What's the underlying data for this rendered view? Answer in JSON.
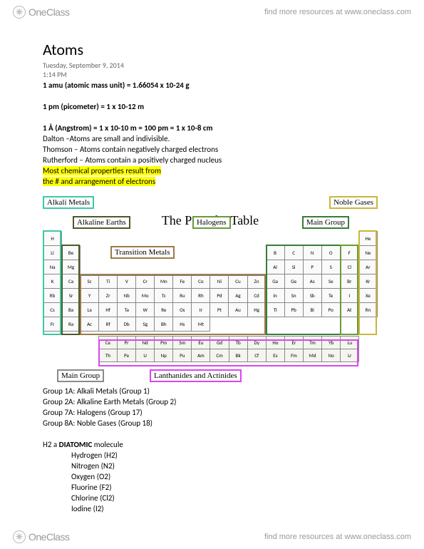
{
  "brand": {
    "logo_text": "OneClass",
    "tagline": "find more resources at www.oneclass.com"
  },
  "doc": {
    "title": "Atoms",
    "date": "Tuesday, September 9, 2014",
    "time": "1:14 PM",
    "line_amu": "1 amu (atomic mass unit) = 1.66054 x 10-24 g",
    "line_pm": "1 pm (picometer) = 1 x 10-12 m",
    "line_ang": "1 Å (Angstrom) = 1 x 10-10 m = 100 pm = 1 x 10-8 cm",
    "dalton": "Dalton –Atoms are small and indivisible.",
    "thomson": "Thomson – Atoms contain negatively charged electrons",
    "rutherford": "Rutherford – Atoms contain a positively charged nucleus",
    "hl1": "Most chemical properties result from",
    "hl2": "the # and arrangement of electrons"
  },
  "pt": {
    "title": "The Periodic Table",
    "labels": {
      "alkali": "Alkali Metals",
      "alkaline": "Alkaline Earths",
      "transition": "Transition Metals",
      "halogens": "Halogens",
      "noble": "Noble Gases",
      "main": "Main Group",
      "lan": "Lanthanides and Actinides"
    },
    "colors": {
      "alkali": "#3cc9a7",
      "alkaline": "#4a5a2a",
      "transition": "#9b7a4a",
      "halogens": "#6a9a3a",
      "noble": "#c9b73c",
      "main_left": "#8a8a8a",
      "main_right": "#3a7a3a",
      "lan": "#d946ef"
    },
    "row1": [
      "H",
      "",
      "",
      "",
      "",
      "",
      "",
      "",
      "",
      "",
      "",
      "",
      "",
      "",
      "",
      "",
      "",
      "He"
    ],
    "row2": [
      "Li",
      "Be",
      "",
      "",
      "",
      "",
      "",
      "",
      "",
      "",
      "",
      "",
      "B",
      "C",
      "N",
      "O",
      "F",
      "Ne"
    ],
    "row3": [
      "Na",
      "Mg",
      "",
      "",
      "",
      "",
      "",
      "",
      "",
      "",
      "",
      "",
      "Al",
      "Si",
      "P",
      "S",
      "Cl",
      "Ar"
    ],
    "row4": [
      "K",
      "Ca",
      "Sc",
      "Ti",
      "V",
      "Cr",
      "Mn",
      "Fe",
      "Co",
      "Ni",
      "Cu",
      "Zn",
      "Ga",
      "Ge",
      "As",
      "Se",
      "Br",
      "Kr"
    ],
    "row5": [
      "Rb",
      "Sr",
      "Y",
      "Zr",
      "Nb",
      "Mo",
      "Tc",
      "Ru",
      "Rh",
      "Pd",
      "Ag",
      "Cd",
      "In",
      "Sn",
      "Sb",
      "Te",
      "I",
      "Xe"
    ],
    "row6": [
      "Cs",
      "Ba",
      "La",
      "Hf",
      "Ta",
      "W",
      "Re",
      "Os",
      "Ir",
      "Pt",
      "Au",
      "Hg",
      "Tl",
      "Pb",
      "Bi",
      "Po",
      "At",
      "Rn"
    ],
    "row7": [
      "Fr",
      "Ra",
      "Ac",
      "Rf",
      "Db",
      "Sg",
      "Bh",
      "Hs",
      "Mt",
      "",
      "",
      "",
      "",
      "",
      "",
      "",
      "",
      ""
    ],
    "lan1": [
      "",
      "",
      "",
      "Ce",
      "Pr",
      "Nd",
      "Pm",
      "Sm",
      "Eu",
      "Gd",
      "Tb",
      "Dy",
      "Ho",
      "Er",
      "Tm",
      "Yb",
      "Lu",
      ""
    ],
    "lan2": [
      "",
      "",
      "",
      "Th",
      "Pa",
      "U",
      "Np",
      "Pu",
      "Am",
      "Cm",
      "Bk",
      "Cf",
      "Es",
      "Fm",
      "Md",
      "No",
      "Lr",
      ""
    ]
  },
  "groups": {
    "g1": "Group 1A: Alkali Metals (Group 1)",
    "g2": "Group 2A: Alkaline Earth Metals (Group 2)",
    "g7": "Group 7A: Halogens (Group 17)",
    "g8": "Group 8A: Noble Gases (Group 18)"
  },
  "diatomic": {
    "heading_pre": "H2 a ",
    "heading_bold": "DIATOMIC",
    "heading_post": " molecule",
    "items": [
      "Hydrogen (H2)",
      "Nitrogen (N2)",
      "Oxygen (O2)",
      "Fluorine (F2)",
      "Chlorine (Cl2)",
      "Iodine (I2)"
    ]
  }
}
